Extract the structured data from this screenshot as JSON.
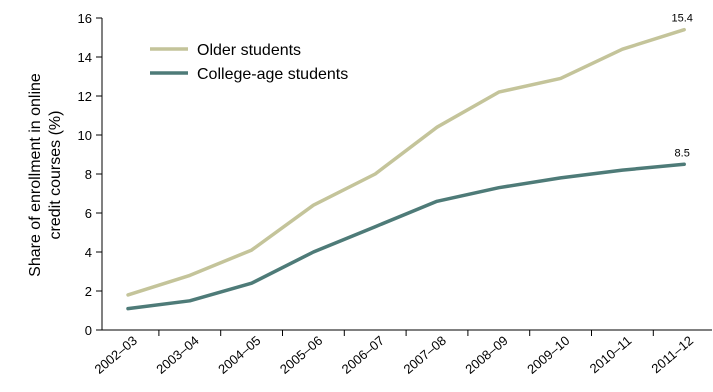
{
  "chart_data": {
    "type": "line",
    "categories": [
      "2002–03",
      "2003–04",
      "2004–05",
      "2005–06",
      "2006–07",
      "2007–08",
      "2008–09",
      "2009–10",
      "2010–11",
      "2011–12"
    ],
    "series": [
      {
        "name": "Older students",
        "color": "#c4c49a",
        "values": [
          1.8,
          2.8,
          4.1,
          6.4,
          8.0,
          10.4,
          12.2,
          12.9,
          14.4,
          15.4
        ],
        "end_label": "15.4"
      },
      {
        "name": "College-age students",
        "color": "#4e7b78",
        "values": [
          1.1,
          1.5,
          2.4,
          4.0,
          5.3,
          6.6,
          7.3,
          7.8,
          8.2,
          8.5
        ],
        "end_label": "8.5"
      }
    ],
    "ylabel_line1": "Share of enrollment in online",
    "ylabel_line2": "credit courses (%)",
    "ylim": [
      0,
      16
    ],
    "yticks": [
      "0",
      "2",
      "4",
      "6",
      "8",
      "10",
      "12",
      "14",
      "16"
    ],
    "grid": false,
    "legend": "top-left"
  }
}
